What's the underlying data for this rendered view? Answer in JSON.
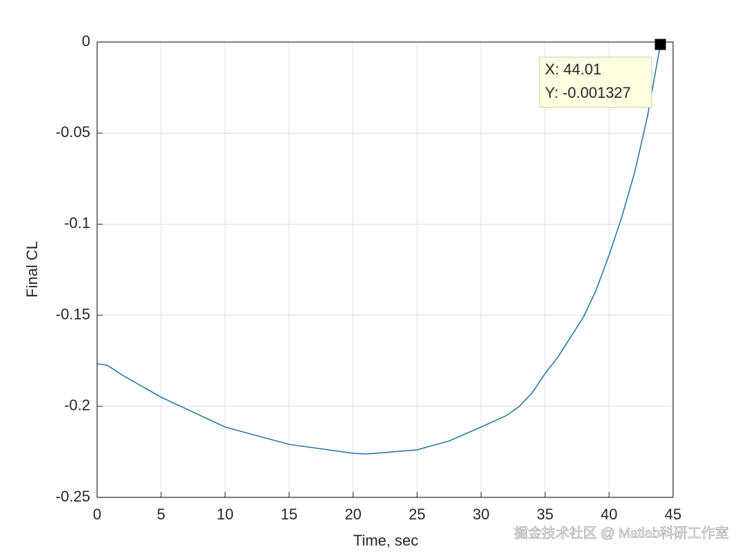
{
  "chart_data": {
    "type": "line",
    "xlabel": "Time, sec",
    "ylabel": "Final CL",
    "x": [
      0,
      0.8,
      2,
      5,
      10,
      15,
      20,
      21,
      25,
      27.5,
      30,
      32,
      33,
      34,
      35,
      36,
      37,
      38,
      39,
      40,
      41,
      42,
      43,
      44.01
    ],
    "series": [
      {
        "color": "#1a6fa8",
        "values": [
          -0.1766,
          -0.1775,
          -0.183,
          -0.195,
          -0.2114,
          -0.2209,
          -0.2258,
          -0.2262,
          -0.2239,
          -0.219,
          -0.2114,
          -0.205,
          -0.2,
          -0.1925,
          -0.182,
          -0.173,
          -0.162,
          -0.151,
          -0.136,
          -0.117,
          -0.096,
          -0.0715,
          -0.041,
          -0.001327
        ]
      }
    ],
    "xlim": [
      0,
      45
    ],
    "xticks": [
      0,
      5,
      10,
      15,
      20,
      25,
      30,
      35,
      40,
      45
    ],
    "ylim": [
      -0.25,
      0
    ],
    "yticks": [
      -0.25,
      -0.2,
      -0.15,
      -0.1,
      -0.05,
      0
    ],
    "grid": true,
    "datatip": {
      "x": 44.01,
      "y": -0.001327,
      "label_x": "X: 44.01",
      "label_y": "Y: -0.001327"
    },
    "watermark": "掘金技术社区 @ Matlab科研工作室"
  }
}
